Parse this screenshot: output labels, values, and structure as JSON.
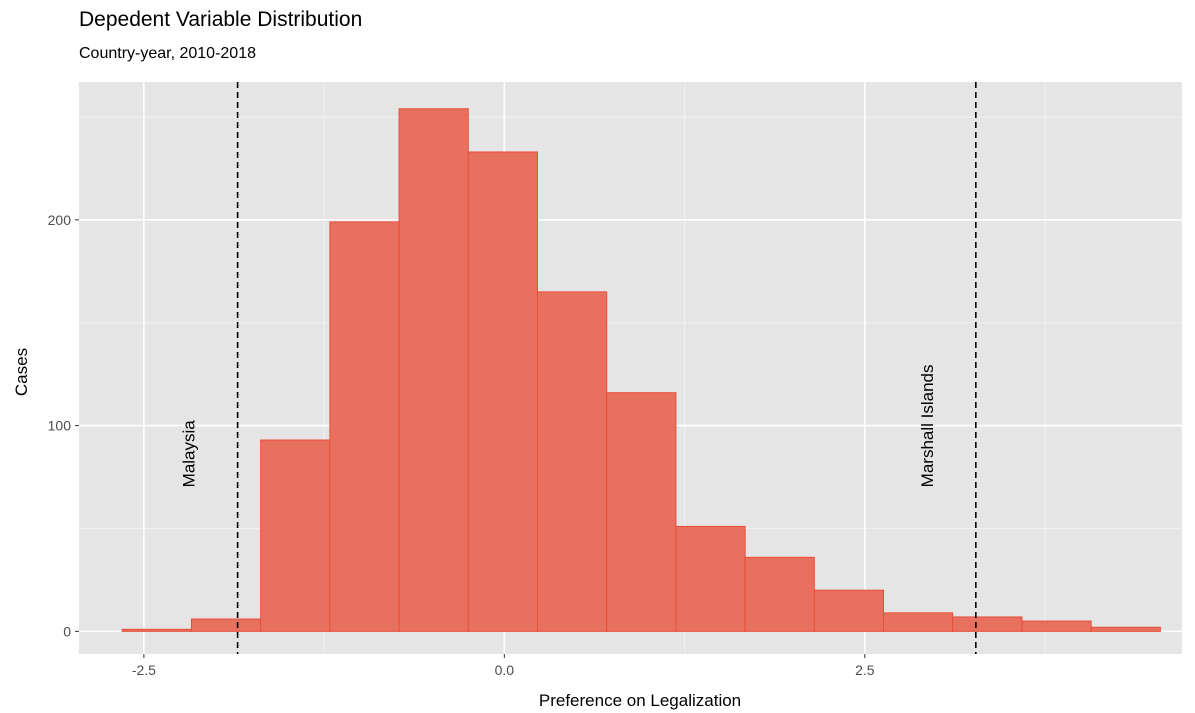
{
  "chart_data": {
    "type": "bar",
    "title": "Depedent Variable Distribution",
    "subtitle": "Country-year, 2010-2018",
    "xlabel": "Preference on Legalization",
    "ylabel": "Cases",
    "xlim": [
      -2.95,
      4.7
    ],
    "ylim": [
      -11,
      267
    ],
    "x_ticks": [
      -2.5,
      0.0,
      2.5
    ],
    "x_tick_labels": [
      "-2.5",
      "0.0",
      "2.5"
    ],
    "y_ticks": [
      0,
      100,
      200
    ],
    "y_tick_labels": [
      "0",
      "100",
      "200"
    ],
    "grid": true,
    "bins": [
      {
        "x0": -2.65,
        "x1": -2.17,
        "count": 1
      },
      {
        "x0": -2.17,
        "x1": -1.69,
        "count": 6
      },
      {
        "x0": -1.69,
        "x1": -1.21,
        "count": 93
      },
      {
        "x0": -1.21,
        "x1": -0.73,
        "count": 199
      },
      {
        "x0": -0.73,
        "x1": -0.25,
        "count": 254
      },
      {
        "x0": -0.25,
        "x1": 0.23,
        "count": 233
      },
      {
        "x0": 0.23,
        "x1": 0.71,
        "count": 165
      },
      {
        "x0": 0.71,
        "x1": 1.19,
        "count": 116
      },
      {
        "x0": 1.19,
        "x1": 1.67,
        "count": 51
      },
      {
        "x0": 1.67,
        "x1": 2.15,
        "count": 36
      },
      {
        "x0": 2.15,
        "x1": 2.63,
        "count": 20
      },
      {
        "x0": 2.63,
        "x1": 3.11,
        "count": 9
      },
      {
        "x0": 3.11,
        "x1": 3.59,
        "count": 7
      },
      {
        "x0": 3.59,
        "x1": 4.07,
        "count": 5
      },
      {
        "x0": 4.07,
        "x1": 4.55,
        "count": 2
      }
    ],
    "reference_lines": [
      {
        "x": -1.85,
        "label": "Malaysia"
      },
      {
        "x": 3.27,
        "label": "Marshall Islands"
      }
    ],
    "colors": {
      "bar_fill": "#e8705f",
      "bar_stroke": "#e84e38",
      "panel_bg": "#e5e5e5",
      "grid_major": "#ffffff",
      "grid_minor": "#f2f2f2",
      "tick_text": "#4d4d4d",
      "ref_line": "#000000"
    }
  }
}
